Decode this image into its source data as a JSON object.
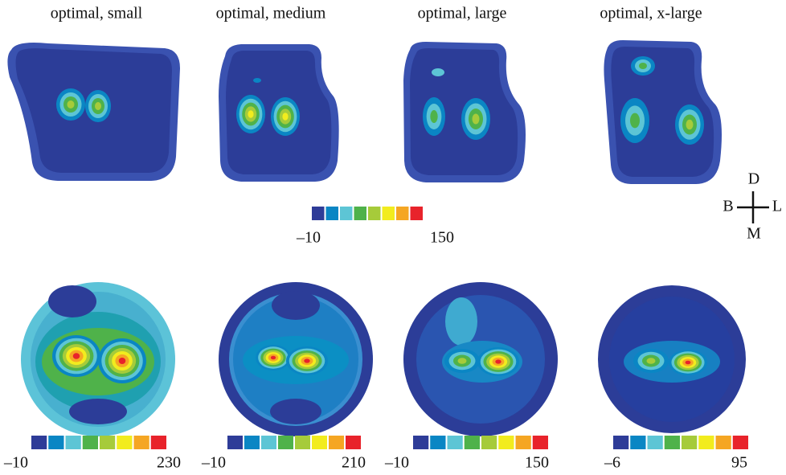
{
  "titles": [
    "optimal, small",
    "optimal, medium",
    "optimal, large",
    "optimal, x-large"
  ],
  "colorbars": [
    {
      "min": "–10",
      "max": "150"
    },
    {
      "min": "–10",
      "max": "230"
    },
    {
      "min": "–10",
      "max": "210"
    },
    {
      "min": "–10",
      "max": "150"
    },
    {
      "min": "–6",
      "max": "95"
    }
  ],
  "orientation": {
    "up": "D",
    "left": "B",
    "right": "L",
    "down": "M"
  }
}
